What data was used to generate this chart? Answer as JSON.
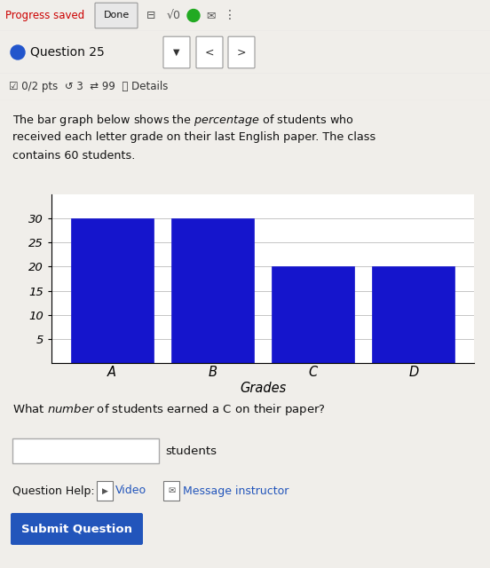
{
  "bar_categories": [
    "A",
    "B",
    "C",
    "D"
  ],
  "bar_values": [
    30,
    30,
    20,
    20
  ],
  "bar_color": "#1515cc",
  "xlabel": "Grades",
  "ylim": [
    0,
    35
  ],
  "yticks": [
    5,
    10,
    15,
    20,
    25,
    30
  ],
  "answer_label": "students",
  "submit_text": "Submit Question",
  "background_color": "#f0eeea",
  "white": "#ffffff",
  "grid_color": "#bbbbbb",
  "header_bg": "#f0eeea",
  "nav_bg": "#ffffff",
  "progress_red": "#cc0000",
  "submit_blue": "#2255bb",
  "link_blue": "#2255bb",
  "text_black": "#111111",
  "text_gray": "#444444",
  "border_gray": "#aaaaaa",
  "done_bg": "#e8e8e8",
  "score_text": "0/2 pts",
  "question_num": "Question 25"
}
